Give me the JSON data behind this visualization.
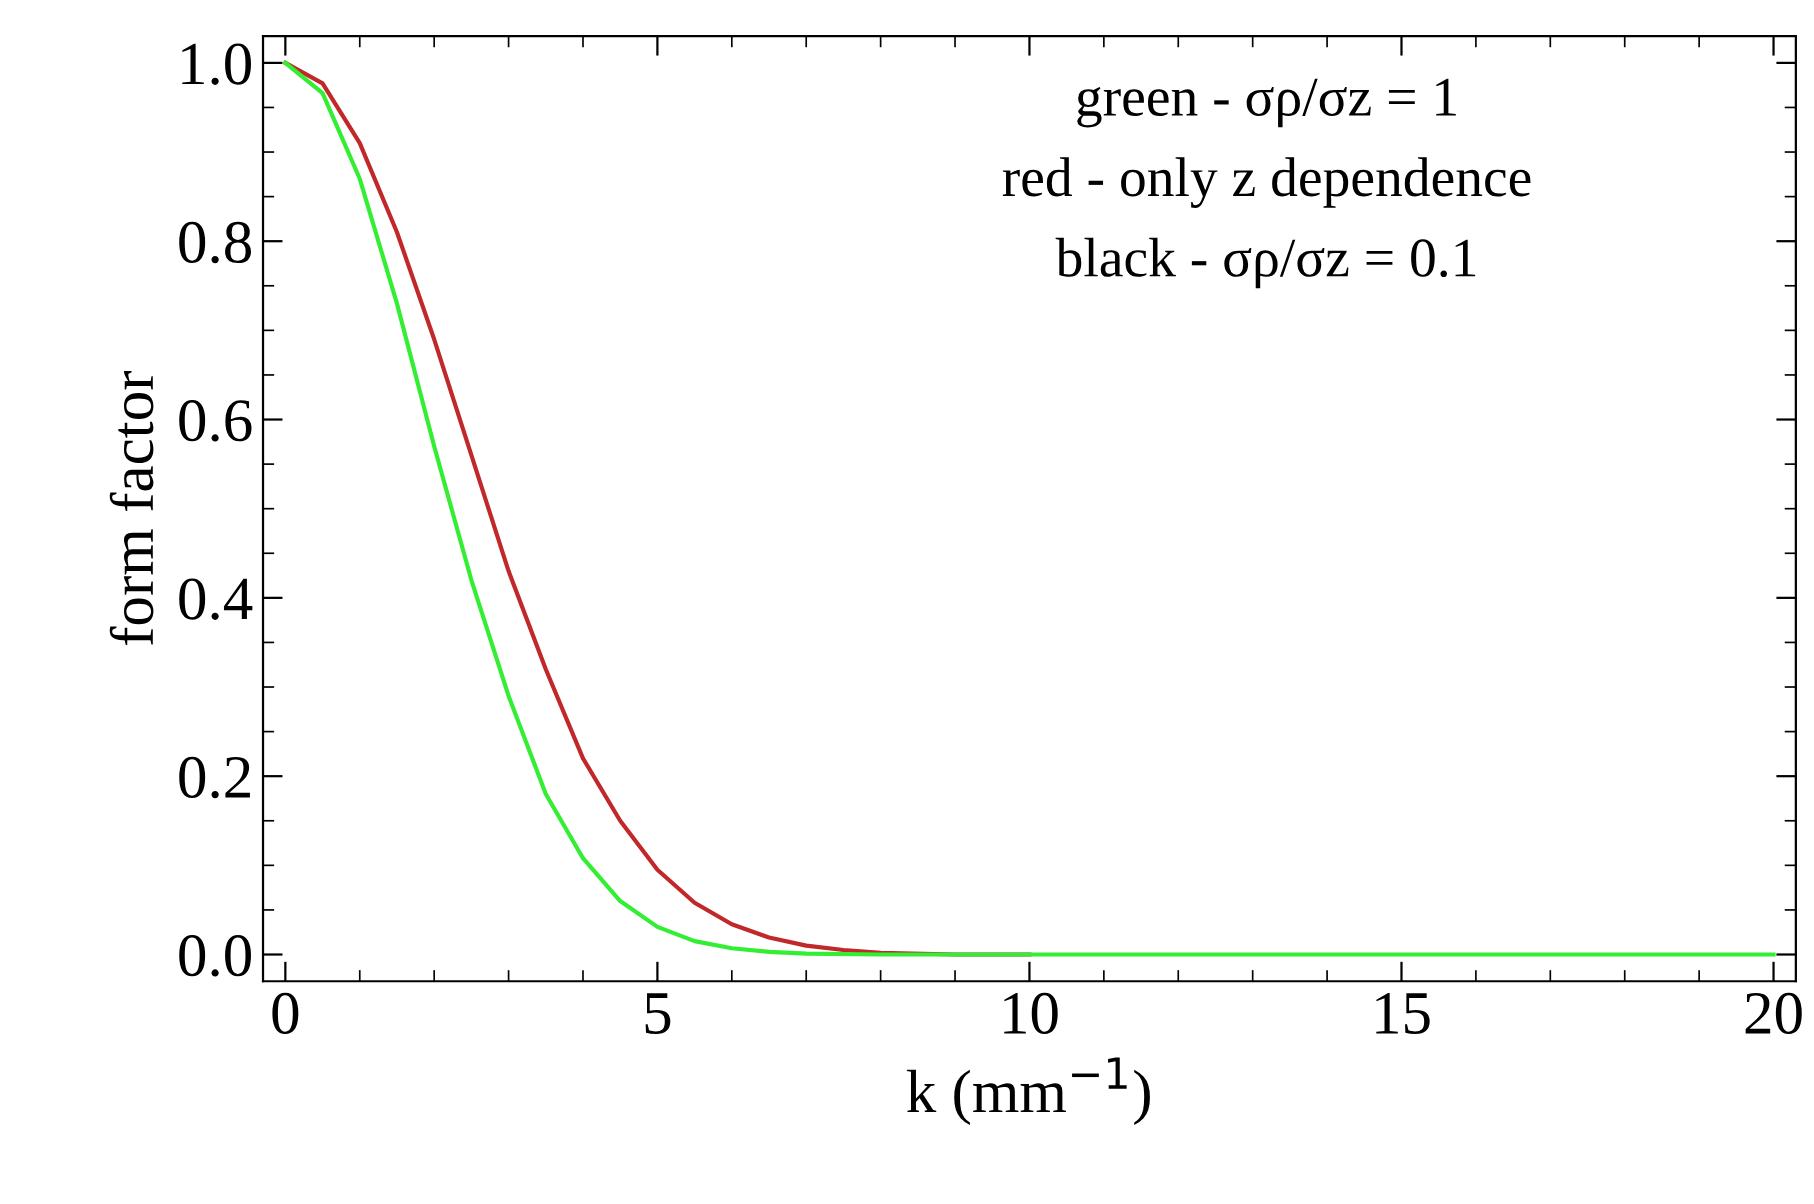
{
  "chart_data": {
    "type": "line",
    "xlabel": "k (mm$^{−1}$)",
    "ylabel": "form factor",
    "xlim": [
      -0.3,
      20.3
    ],
    "ylim": [
      -0.03,
      1.03
    ],
    "xticks": [
      0,
      5,
      10,
      15,
      20
    ],
    "yticks": [
      {
        "value": 0,
        "label": "0.0"
      },
      {
        "value": 0.2,
        "label": "0.2"
      },
      {
        "value": 0.4,
        "label": "0.4"
      },
      {
        "value": 0.6,
        "label": "0.6"
      },
      {
        "value": 0.8,
        "label": "0.8"
      },
      {
        "value": 1,
        "label": "1.0"
      }
    ],
    "grid": false,
    "legend": false,
    "marker": "none",
    "line_style": "solid",
    "annotations": [
      "green - σρ/σz = 1",
      "red - only z dependence",
      "black - σρ/σz = 0.1"
    ],
    "series": [
      {
        "color": "#c0282a",
        "x": [
          0,
          0.5,
          1,
          1.5,
          2,
          2.5,
          3,
          3.5,
          4,
          4.5,
          5,
          5.5,
          6,
          6.5,
          7,
          7.5,
          8,
          9,
          10
        ],
        "values": [
          1.0,
          0.977,
          0.91,
          0.81,
          0.69,
          0.56,
          0.43,
          0.32,
          0.22,
          0.15,
          0.095,
          0.058,
          0.034,
          0.019,
          0.01,
          0.005,
          0.002,
          0,
          0
        ]
      },
      {
        "color": "#33ee33",
        "x": [
          0,
          0.5,
          1,
          1.5,
          2,
          2.5,
          3,
          3.5,
          4,
          4.5,
          5,
          5.5,
          6,
          6.5,
          7,
          8,
          10,
          15,
          20
        ],
        "values": [
          1.0,
          0.966,
          0.87,
          0.73,
          0.57,
          0.42,
          0.29,
          0.18,
          0.108,
          0.06,
          0.031,
          0.015,
          0.007,
          0.003,
          0.001,
          0,
          0,
          0,
          0
        ]
      }
    ]
  }
}
